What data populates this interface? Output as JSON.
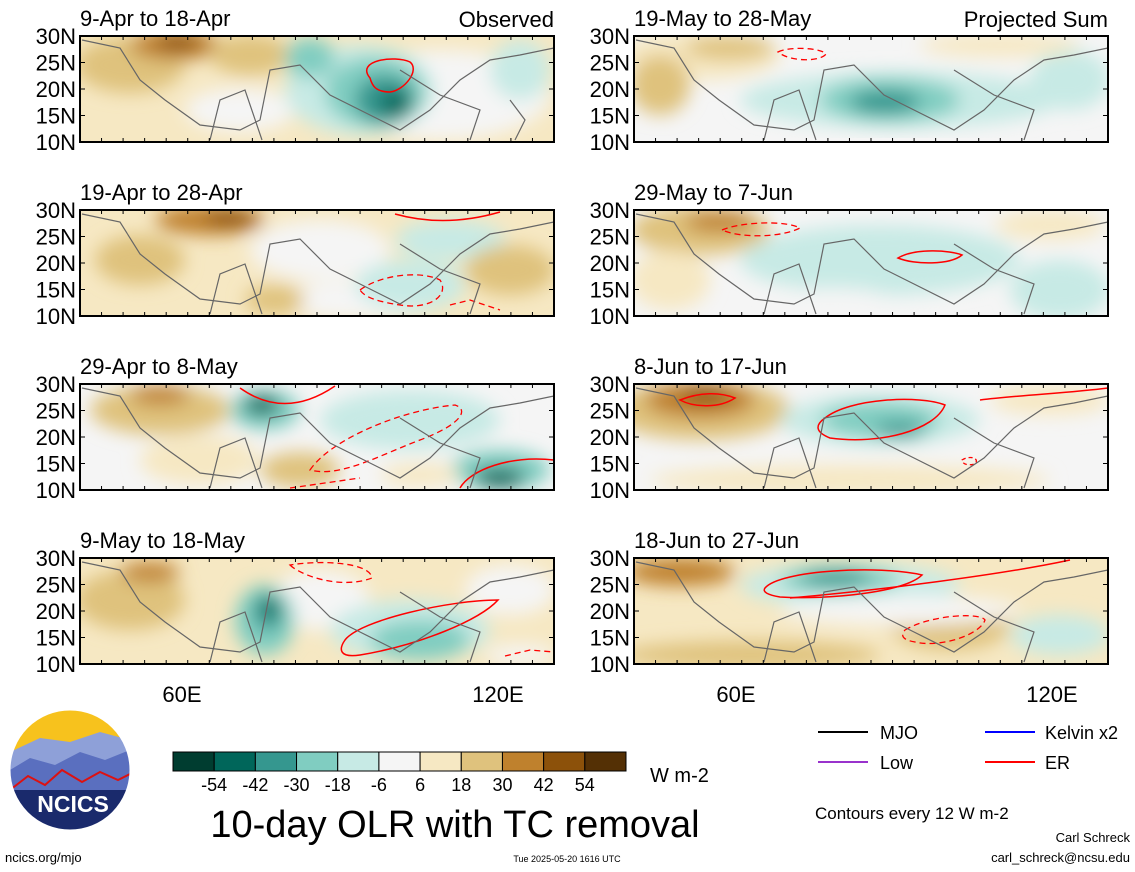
{
  "panels": [
    {
      "period": "9-Apr to 18-Apr",
      "tag": "Observed"
    },
    {
      "period": "19-Apr to 28-Apr",
      "tag": ""
    },
    {
      "period": "29-Apr to 8-May",
      "tag": ""
    },
    {
      "period": "9-May to 18-May",
      "tag": ""
    },
    {
      "period": "19-May to 28-May",
      "tag": "Projected Sum"
    },
    {
      "period": "29-May to 7-Jun",
      "tag": ""
    },
    {
      "period": "8-Jun to 17-Jun",
      "tag": ""
    },
    {
      "period": "18-Jun to 27-Jun",
      "tag": ""
    }
  ],
  "lat_labels": [
    "30N",
    "25N",
    "20N",
    "15N",
    "10N"
  ],
  "lon_labels": [
    "60E",
    "120E"
  ],
  "colorbar": {
    "ticks": [
      "-54",
      "-42",
      "-30",
      "-18",
      "-6",
      "6",
      "18",
      "30",
      "42",
      "54"
    ],
    "units": "W m-2",
    "colors": [
      "#003d30",
      "#00665a",
      "#35978f",
      "#80cdc1",
      "#c7eae5",
      "#f5f5f5",
      "#f6e8c3",
      "#dfc27d",
      "#bf812d",
      "#8c510a",
      "#543005"
    ]
  },
  "legend": {
    "items": [
      {
        "label": "MJO",
        "color": "#000000"
      },
      {
        "label": "Kelvin x2",
        "color": "#0000ff"
      },
      {
        "label": "Low",
        "color": "#9932cc"
      },
      {
        "label": "ER",
        "color": "#ff0000"
      }
    ],
    "note": "Contours every 12 W m-2"
  },
  "title": "10-day OLR with TC removal",
  "logo_text": "NCICS",
  "footer": {
    "left": "ncics.org/mjo",
    "center": "Tue 2025-05-20 1616 UTC",
    "author": "Carl Schreck",
    "email": "carl_schreck@ncsu.edu"
  }
}
